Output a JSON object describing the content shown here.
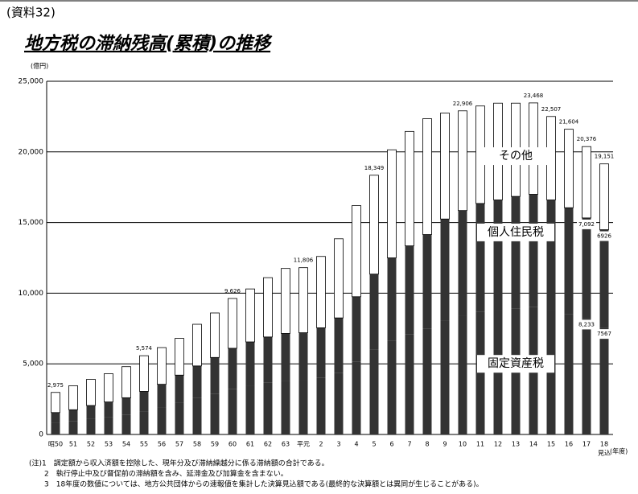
{
  "header": "(資料32)",
  "chart_data": {
    "type": "stacked_bar",
    "title": "地方税の滞納残高(累積)の推移",
    "y_unit": "(億円)",
    "x_unit": "(年度)",
    "x_note": "見込",
    "categories": [
      "昭50",
      "51",
      "52",
      "53",
      "54",
      "55",
      "56",
      "57",
      "58",
      "59",
      "60",
      "61",
      "62",
      "63",
      "平元",
      "2",
      "3",
      "4",
      "5",
      "6",
      "7",
      "8",
      "9",
      "10",
      "11",
      "12",
      "13",
      "14",
      "15",
      "16",
      "17",
      "18"
    ],
    "series": [
      {
        "name": "固定資産税",
        "color": "#333333",
        "values": [
          822,
          928,
          1087,
          1219,
          1378,
          1617,
          1882,
          2226,
          2571,
          2889,
          3233,
          3472,
          3657,
          3790,
          3816,
          4002,
          4373,
          5168,
          6016,
          6625,
          7076,
          7500,
          8083,
          8401,
          8666,
          8798,
          8931,
          9010,
          8798,
          8507,
          8233,
          7567
        ],
        "value_labels": [
          null,
          null,
          null,
          null,
          null,
          null,
          null,
          null,
          null,
          null,
          null,
          null,
          null,
          null,
          null,
          null,
          null,
          null,
          null,
          null,
          null,
          null,
          null,
          null,
          null,
          null,
          null,
          null,
          null,
          null,
          "8,233",
          "7567"
        ]
      },
      {
        "name": "個人住民税",
        "color": "#333333",
        "values": [
          728,
          822,
          963,
          1081,
          1222,
          1433,
          1668,
          1974,
          2279,
          2561,
          2867,
          3078,
          3243,
          3360,
          3384,
          3548,
          3877,
          4582,
          5334,
          5875,
          6274,
          6650,
          7167,
          7449,
          7684,
          7802,
          7919,
          7990,
          7802,
          7543,
          7092,
          6926
        ],
        "value_labels": [
          null,
          null,
          null,
          null,
          null,
          null,
          null,
          null,
          null,
          null,
          null,
          null,
          null,
          null,
          null,
          null,
          null,
          null,
          null,
          null,
          null,
          null,
          null,
          null,
          null,
          null,
          null,
          null,
          null,
          null,
          "7,092",
          "6926"
        ]
      },
      {
        "name": "その他",
        "color": "#ffffff",
        "values": [
          1425,
          1700,
          1850,
          2000,
          2200,
          2524,
          2600,
          2600,
          2950,
          3150,
          3526,
          3750,
          4200,
          4600,
          4606,
          5050,
          5600,
          6450,
          6999,
          7650,
          8100,
          8200,
          7500,
          7056,
          6900,
          6850,
          6600,
          6468,
          5907,
          5554,
          5051,
          4658
        ]
      }
    ],
    "total_labels": [
      "2,975",
      null,
      null,
      null,
      null,
      "5,574",
      null,
      null,
      null,
      null,
      "9,626",
      null,
      null,
      null,
      "11,806",
      null,
      null,
      null,
      "18,349",
      null,
      null,
      null,
      null,
      "22,906",
      null,
      null,
      null,
      "23,468",
      "22,507",
      "21,604",
      "20,376",
      "19,151"
    ],
    "ylim": [
      0,
      25000
    ],
    "yticks": [
      0,
      {
        "value": 5000,
        "label": "5,000"
      },
      {
        "value": 10000,
        "label": "10,000"
      },
      {
        "value": 15000,
        "label": "15,000"
      },
      {
        "value": 20000,
        "label": "20,000"
      },
      {
        "value": 25000,
        "label": "25,000"
      }
    ],
    "grid": true
  },
  "notes": [
    "(注)1　調定額から収入済額を控除した、現年分及び滞納繰越分に係る滞納額の合計である。",
    "2　執行停止中及び督促前の滞納額を含み、延滞金及び加算金を含まない。",
    "3　18年度の数値については、地方公共団体からの速報値を集計した決算見込額である(最終的な決算額とは異同が生じることがある)。"
  ]
}
